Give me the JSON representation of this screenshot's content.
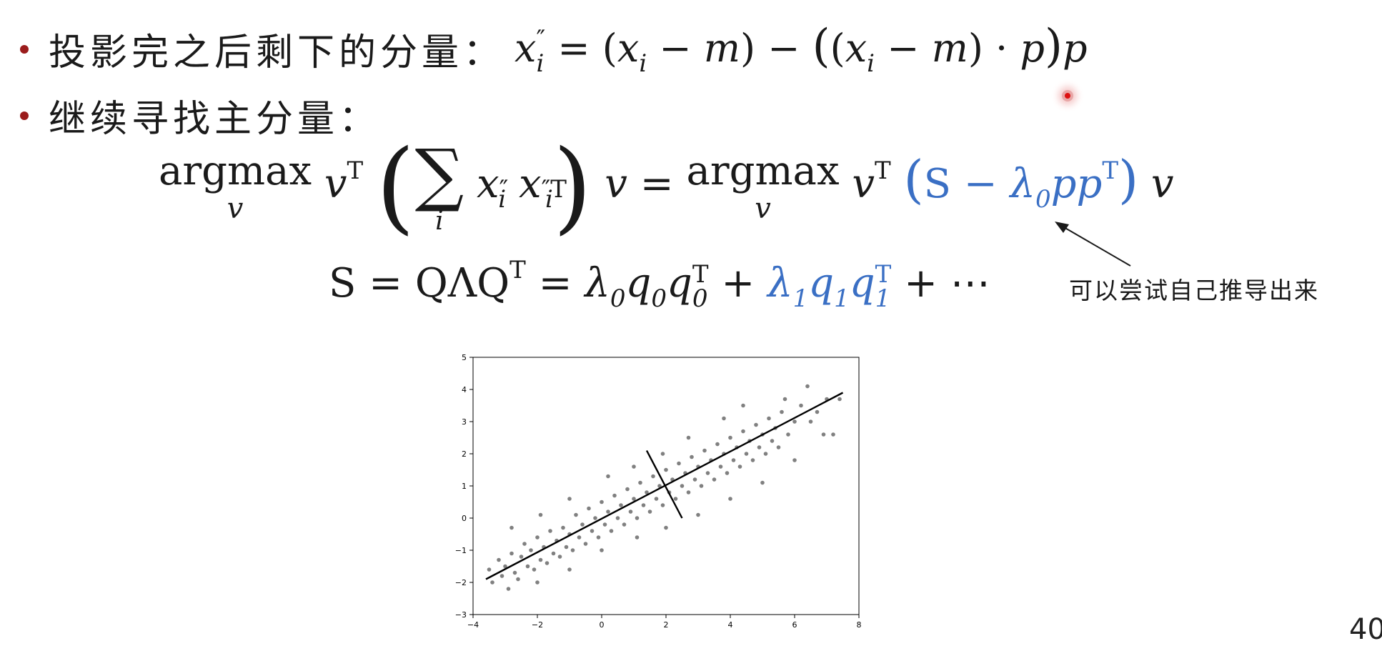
{
  "bullets": [
    {
      "text": "投影完之后剩下的分量："
    },
    {
      "text": "继续寻找主分量："
    }
  ],
  "annotation": "可以尝试自己推导出来",
  "page_number": "40",
  "colors": {
    "bullet": "#9b1c1c",
    "accent_blue": "#3a6fc4",
    "points": "#808080",
    "line": "#000000"
  },
  "chart_data": {
    "type": "scatter",
    "title": "",
    "xlabel": "",
    "ylabel": "",
    "xlim": [
      -4,
      8
    ],
    "ylim": [
      -3,
      5
    ],
    "xticks": [
      -4,
      -2,
      0,
      2,
      4,
      6,
      8
    ],
    "yticks": [
      -3,
      -2,
      -1,
      0,
      1,
      2,
      3,
      4,
      5
    ],
    "grid": false,
    "series": [
      {
        "values": [
          [
            -3.5,
            -1.6
          ],
          [
            -3.4,
            -2.0
          ],
          [
            -3.2,
            -1.3
          ],
          [
            -3.1,
            -1.8
          ],
          [
            -3.0,
            -1.5
          ],
          [
            -2.9,
            -2.2
          ],
          [
            -2.8,
            -1.1
          ],
          [
            -2.7,
            -1.7
          ],
          [
            -2.6,
            -1.9
          ],
          [
            -2.5,
            -1.2
          ],
          [
            -2.4,
            -0.8
          ],
          [
            -2.3,
            -1.5
          ],
          [
            -2.2,
            -1.0
          ],
          [
            -2.1,
            -1.6
          ],
          [
            -2.0,
            -0.6
          ],
          [
            -1.9,
            -1.3
          ],
          [
            -1.8,
            -0.9
          ],
          [
            -1.7,
            -1.4
          ],
          [
            -1.6,
            -0.4
          ],
          [
            -1.5,
            -1.1
          ],
          [
            -1.4,
            -0.7
          ],
          [
            -1.3,
            -1.2
          ],
          [
            -1.2,
            -0.3
          ],
          [
            -1.1,
            -0.9
          ],
          [
            -1.0,
            -0.5
          ],
          [
            -0.9,
            -1.0
          ],
          [
            -0.8,
            0.1
          ],
          [
            -0.7,
            -0.6
          ],
          [
            -0.6,
            -0.2
          ],
          [
            -0.5,
            -0.8
          ],
          [
            -0.4,
            0.3
          ],
          [
            -0.3,
            -0.4
          ],
          [
            -0.2,
            0.0
          ],
          [
            -0.1,
            -0.6
          ],
          [
            0.0,
            0.5
          ],
          [
            0.1,
            -0.2
          ],
          [
            0.2,
            0.2
          ],
          [
            0.3,
            -0.4
          ],
          [
            0.4,
            0.7
          ],
          [
            0.5,
            0.0
          ],
          [
            0.6,
            0.4
          ],
          [
            0.7,
            -0.2
          ],
          [
            0.8,
            0.9
          ],
          [
            0.9,
            0.2
          ],
          [
            1.0,
            0.6
          ],
          [
            1.1,
            0.0
          ],
          [
            1.2,
            1.1
          ],
          [
            1.3,
            0.4
          ],
          [
            1.4,
            0.8
          ],
          [
            1.5,
            0.2
          ],
          [
            1.6,
            1.3
          ],
          [
            1.7,
            0.6
          ],
          [
            1.8,
            1.0
          ],
          [
            1.9,
            0.4
          ],
          [
            2.0,
            1.5
          ],
          [
            2.1,
            0.8
          ],
          [
            2.2,
            1.2
          ],
          [
            2.3,
            0.6
          ],
          [
            2.4,
            1.7
          ],
          [
            2.5,
            1.0
          ],
          [
            2.6,
            1.4
          ],
          [
            2.7,
            0.8
          ],
          [
            2.8,
            1.9
          ],
          [
            2.9,
            1.2
          ],
          [
            3.0,
            1.6
          ],
          [
            3.1,
            1.0
          ],
          [
            3.2,
            2.1
          ],
          [
            3.3,
            1.4
          ],
          [
            3.4,
            1.8
          ],
          [
            3.5,
            1.2
          ],
          [
            3.6,
            2.3
          ],
          [
            3.7,
            1.6
          ],
          [
            3.8,
            2.0
          ],
          [
            3.9,
            1.4
          ],
          [
            4.0,
            2.5
          ],
          [
            4.1,
            1.8
          ],
          [
            4.2,
            2.2
          ],
          [
            4.3,
            1.6
          ],
          [
            4.4,
            2.7
          ],
          [
            4.5,
            2.0
          ],
          [
            4.6,
            2.4
          ],
          [
            4.7,
            1.8
          ],
          [
            4.8,
            2.9
          ],
          [
            4.9,
            2.2
          ],
          [
            5.0,
            2.6
          ],
          [
            5.1,
            2.0
          ],
          [
            5.2,
            3.1
          ],
          [
            5.3,
            2.4
          ],
          [
            5.4,
            2.8
          ],
          [
            5.5,
            2.2
          ],
          [
            5.6,
            3.3
          ],
          [
            5.8,
            2.6
          ],
          [
            6.0,
            3.0
          ],
          [
            6.2,
            3.5
          ],
          [
            6.4,
            4.1
          ],
          [
            6.5,
            3.0
          ],
          [
            6.7,
            3.3
          ],
          [
            6.9,
            2.6
          ],
          [
            7.0,
            3.7
          ],
          [
            7.4,
            3.7
          ],
          [
            -2.8,
            -0.3
          ],
          [
            -1.9,
            0.1
          ],
          [
            -1.0,
            0.6
          ],
          [
            0.2,
            1.3
          ],
          [
            1.0,
            1.6
          ],
          [
            1.9,
            2.0
          ],
          [
            2.7,
            2.5
          ],
          [
            3.8,
            3.1
          ],
          [
            4.4,
            3.5
          ],
          [
            5.7,
            3.7
          ],
          [
            -2.0,
            -2.0
          ],
          [
            -1.0,
            -1.6
          ],
          [
            0.0,
            -1.0
          ],
          [
            1.1,
            -0.6
          ],
          [
            2.0,
            -0.3
          ],
          [
            3.0,
            0.1
          ],
          [
            4.0,
            0.6
          ],
          [
            5.0,
            1.1
          ],
          [
            6.0,
            1.8
          ],
          [
            7.2,
            2.6
          ]
        ]
      }
    ],
    "lines": [
      {
        "x": [
          -3.6,
          7.5
        ],
        "y": [
          -1.9,
          3.9
        ]
      },
      {
        "x": [
          1.4,
          2.5
        ],
        "y": [
          2.1,
          0.0
        ]
      }
    ]
  }
}
